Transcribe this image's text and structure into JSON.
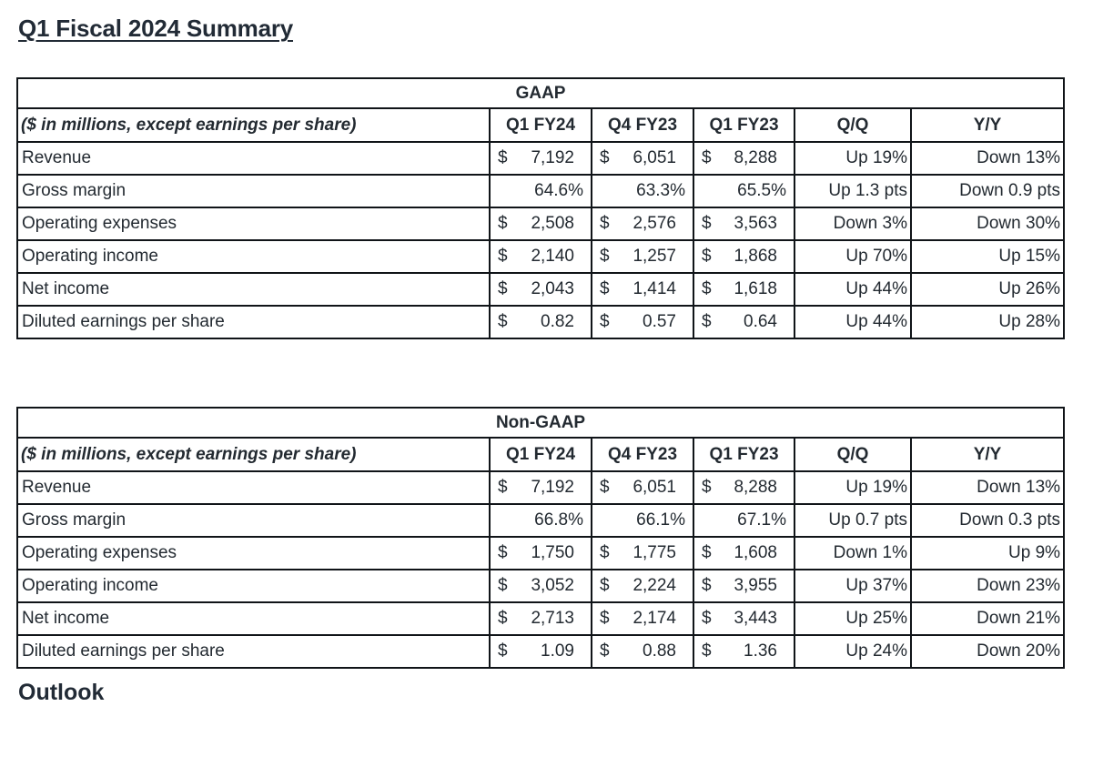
{
  "page": {
    "title": "Q1 Fiscal 2024 Summary",
    "outlook_heading": "Outlook"
  },
  "currency_symbol": "$",
  "colors": {
    "background": "#ffffff",
    "text": "#232a31",
    "heading": "#222b36",
    "table_border": "#101418"
  },
  "tables": [
    {
      "group_header": "GAAP",
      "caption": "($ in millions, except earnings per share)",
      "columns": [
        "Q1 FY24",
        "Q4 FY23",
        "Q1 FY23",
        "Q/Q",
        "Y/Y"
      ],
      "rows": [
        {
          "label": "Revenue",
          "cells": [
            {
              "dollar": "7,192"
            },
            {
              "dollar": "6,051"
            },
            {
              "dollar": "8,288"
            },
            {
              "chg": "Up 19%"
            },
            {
              "chg": "Down 13%"
            }
          ]
        },
        {
          "label": "Gross margin",
          "cells": [
            {
              "pct": "64.6%"
            },
            {
              "pct": "63.3%"
            },
            {
              "pct": "65.5%"
            },
            {
              "chg": "Up 1.3 pts"
            },
            {
              "chg": "Down 0.9 pts"
            }
          ]
        },
        {
          "label": "Operating expenses",
          "cells": [
            {
              "dollar": "2,508"
            },
            {
              "dollar": "2,576"
            },
            {
              "dollar": "3,563"
            },
            {
              "chg": "Down 3%"
            },
            {
              "chg": "Down 30%"
            }
          ]
        },
        {
          "label": "Operating income",
          "cells": [
            {
              "dollar": "2,140"
            },
            {
              "dollar": "1,257"
            },
            {
              "dollar": "1,868"
            },
            {
              "chg": "Up 70%"
            },
            {
              "chg": "Up 15%"
            }
          ]
        },
        {
          "label": "Net income",
          "cells": [
            {
              "dollar": "2,043"
            },
            {
              "dollar": "1,414"
            },
            {
              "dollar": "1,618"
            },
            {
              "chg": "Up 44%"
            },
            {
              "chg": "Up 26%"
            }
          ]
        },
        {
          "label": "Diluted earnings per share",
          "cells": [
            {
              "dollar": "0.82"
            },
            {
              "dollar": "0.57"
            },
            {
              "dollar": "0.64"
            },
            {
              "chg": "Up 44%"
            },
            {
              "chg": "Up 28%"
            }
          ]
        }
      ]
    },
    {
      "group_header": "Non-GAAP",
      "caption": "($ in millions, except earnings per share)",
      "columns": [
        "Q1 FY24",
        "Q4 FY23",
        "Q1 FY23",
        "Q/Q",
        "Y/Y"
      ],
      "rows": [
        {
          "label": "Revenue",
          "cells": [
            {
              "dollar": "7,192"
            },
            {
              "dollar": "6,051"
            },
            {
              "dollar": "8,288"
            },
            {
              "chg": "Up 19%"
            },
            {
              "chg": "Down 13%"
            }
          ]
        },
        {
          "label": "Gross margin",
          "cells": [
            {
              "pct": "66.8%"
            },
            {
              "pct": "66.1%"
            },
            {
              "pct": "67.1%"
            },
            {
              "chg": "Up 0.7 pts"
            },
            {
              "chg": "Down 0.3 pts"
            }
          ]
        },
        {
          "label": "Operating expenses",
          "cells": [
            {
              "dollar": "1,750"
            },
            {
              "dollar": "1,775"
            },
            {
              "dollar": "1,608"
            },
            {
              "chg": "Down 1%"
            },
            {
              "chg": "Up 9%"
            }
          ]
        },
        {
          "label": "Operating income",
          "cells": [
            {
              "dollar": "3,052"
            },
            {
              "dollar": "2,224"
            },
            {
              "dollar": "3,955"
            },
            {
              "chg": "Up 37%"
            },
            {
              "chg": "Down 23%"
            }
          ]
        },
        {
          "label": "Net income",
          "cells": [
            {
              "dollar": "2,713"
            },
            {
              "dollar": "2,174"
            },
            {
              "dollar": "3,443"
            },
            {
              "chg": "Up 25%"
            },
            {
              "chg": "Down 21%"
            }
          ]
        },
        {
          "label": "Diluted earnings per share",
          "cells": [
            {
              "dollar": "1.09"
            },
            {
              "dollar": "0.88"
            },
            {
              "dollar": "1.36"
            },
            {
              "chg": "Up 24%"
            },
            {
              "chg": "Down 20%"
            }
          ]
        }
      ]
    }
  ]
}
